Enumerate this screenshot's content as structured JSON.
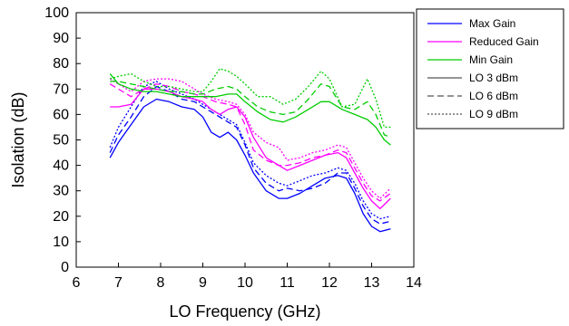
{
  "chart_data": {
    "type": "line",
    "title": "",
    "xlabel": "LO Frequency (GHz)",
    "ylabel": "Isolation (dB)",
    "xlim": [
      6,
      14
    ],
    "ylim": [
      0,
      100
    ],
    "xticks": [
      6,
      7,
      8,
      9,
      10,
      11,
      12,
      13,
      14
    ],
    "yticks": [
      0,
      10,
      20,
      30,
      40,
      50,
      60,
      70,
      80,
      90,
      100
    ],
    "xtick_labels": [
      "6",
      "7",
      "8",
      "9",
      "10",
      "11",
      "12",
      "13",
      "14"
    ],
    "ytick_labels": [
      "0",
      "10",
      "20",
      "30",
      "40",
      "50",
      "60",
      "70",
      "80",
      "90",
      "100"
    ],
    "grid": false,
    "legend_position": "top-right, outside plot",
    "legend": [
      {
        "label": "Max Gain",
        "color": "#0000ff",
        "style": "solid"
      },
      {
        "label": "Reduced Gain",
        "color": "#ff00ff",
        "style": "solid"
      },
      {
        "label": "Min Gain",
        "color": "#00cc00",
        "style": "solid"
      },
      {
        "label": "LO 3 dBm",
        "color": "#555555",
        "style": "solid"
      },
      {
        "label": "LO 6 dBm",
        "color": "#555555",
        "style": "dashed"
      },
      {
        "label": "LO 9 dBm",
        "color": "#555555",
        "style": "dotted"
      }
    ],
    "series": [
      {
        "gain": "Max Gain",
        "lo": "LO 3 dBm",
        "color": "#0000ff",
        "style": "solid",
        "x": [
          6.8,
          7.0,
          7.3,
          7.6,
          7.9,
          8.2,
          8.5,
          8.8,
          9.0,
          9.2,
          9.4,
          9.6,
          9.8,
          10.0,
          10.2,
          10.5,
          10.8,
          11.0,
          11.3,
          11.6,
          11.9,
          12.2,
          12.4,
          12.6,
          12.8,
          13.0,
          13.2,
          13.45
        ],
        "y": [
          43,
          49,
          56,
          63,
          66,
          65,
          63,
          62,
          59,
          53,
          51,
          53,
          50,
          44,
          37,
          30,
          27,
          27,
          29,
          32,
          35,
          36,
          35,
          29,
          21,
          16,
          14,
          15
        ]
      },
      {
        "gain": "Max Gain",
        "lo": "LO 6 dBm",
        "color": "#0000ff",
        "style": "dashed",
        "x": [
          6.8,
          7.0,
          7.3,
          7.6,
          7.9,
          8.2,
          8.5,
          8.8,
          9.0,
          9.3,
          9.6,
          9.8,
          10.0,
          10.2,
          10.5,
          10.8,
          11.0,
          11.3,
          11.6,
          11.9,
          12.2,
          12.4,
          12.6,
          12.8,
          13.0,
          13.2,
          13.45
        ],
        "y": [
          45,
          52,
          59,
          67,
          71,
          69,
          66,
          65,
          63,
          60,
          57,
          55,
          48,
          39,
          33,
          30,
          31,
          30,
          31,
          33,
          37,
          37,
          31,
          24,
          19,
          17,
          18
        ]
      },
      {
        "gain": "Max Gain",
        "lo": "LO 9 dBm",
        "color": "#0000ff",
        "style": "dotted",
        "x": [
          6.8,
          7.0,
          7.3,
          7.6,
          7.9,
          8.2,
          8.5,
          8.8,
          9.0,
          9.3,
          9.6,
          9.8,
          10.0,
          10.2,
          10.5,
          10.8,
          11.0,
          11.3,
          11.6,
          11.9,
          12.2,
          12.4,
          12.6,
          12.8,
          13.0,
          13.2,
          13.45
        ],
        "y": [
          47,
          55,
          63,
          71,
          73,
          70,
          68,
          66,
          64,
          61,
          58,
          56,
          49,
          41,
          36,
          33,
          32,
          34,
          36,
          37,
          39,
          38,
          33,
          26,
          21,
          19,
          20
        ]
      },
      {
        "gain": "Reduced Gain",
        "lo": "LO 3 dBm",
        "color": "#ff00ff",
        "style": "solid",
        "x": [
          6.8,
          7.0,
          7.3,
          7.6,
          7.9,
          8.2,
          8.5,
          8.8,
          9.0,
          9.2,
          9.4,
          9.6,
          9.8,
          10.0,
          10.2,
          10.5,
          10.8,
          11.0,
          11.3,
          11.6,
          11.9,
          12.2,
          12.4,
          12.6,
          12.8,
          13.0,
          13.2,
          13.45
        ],
        "y": [
          63,
          63,
          64,
          70,
          70,
          69,
          67,
          66,
          65,
          62,
          60,
          62,
          63,
          59,
          51,
          43,
          40,
          38,
          40,
          42,
          44,
          45,
          43,
          37,
          31,
          26,
          23,
          27
        ]
      },
      {
        "gain": "Reduced Gain",
        "lo": "LO 6 dBm",
        "color": "#ff00ff",
        "style": "dashed",
        "x": [
          6.8,
          7.0,
          7.3,
          7.6,
          7.9,
          8.2,
          8.5,
          8.8,
          9.0,
          9.3,
          9.6,
          9.8,
          10.0,
          10.2,
          10.5,
          10.8,
          11.0,
          11.3,
          11.6,
          11.9,
          12.2,
          12.4,
          12.6,
          12.8,
          13.0,
          13.2,
          13.45
        ],
        "y": [
          72,
          70,
          67,
          70,
          72,
          71,
          69,
          68,
          67,
          65,
          64,
          63,
          56,
          46,
          42,
          40,
          40,
          41,
          43,
          44,
          46,
          45,
          39,
          33,
          28,
          26,
          29
        ]
      },
      {
        "gain": "Reduced Gain",
        "lo": "LO 9 dBm",
        "color": "#ff00ff",
        "style": "dotted",
        "x": [
          6.8,
          7.0,
          7.3,
          7.6,
          7.9,
          8.2,
          8.5,
          8.8,
          9.0,
          9.3,
          9.6,
          9.8,
          10.0,
          10.2,
          10.5,
          10.8,
          11.0,
          11.3,
          11.6,
          11.9,
          12.2,
          12.4,
          12.6,
          12.8,
          13.0,
          13.2,
          13.45
        ],
        "y": [
          74,
          72,
          69,
          73,
          74,
          74,
          73,
          70,
          68,
          66,
          65,
          64,
          60,
          53,
          49,
          47,
          42,
          43,
          45,
          46,
          48,
          47,
          41,
          35,
          30,
          27,
          31
        ]
      },
      {
        "gain": "Min Gain",
        "lo": "LO 3 dBm",
        "color": "#00cc00",
        "style": "solid",
        "x": [
          6.8,
          7.0,
          7.3,
          7.6,
          7.9,
          8.2,
          8.5,
          8.8,
          9.0,
          9.3,
          9.6,
          9.8,
          10.0,
          10.3,
          10.6,
          10.9,
          11.2,
          11.5,
          11.8,
          12.0,
          12.3,
          12.6,
          12.9,
          13.1,
          13.3,
          13.45
        ],
        "y": [
          76,
          72,
          70,
          69,
          69,
          68,
          67,
          67,
          67,
          67,
          68,
          68,
          65,
          61,
          58,
          57,
          59,
          62,
          65,
          65,
          62,
          60,
          58,
          55,
          50,
          48
        ]
      },
      {
        "gain": "Min Gain",
        "lo": "LO 6 dBm",
        "color": "#00cc00",
        "style": "dashed",
        "x": [
          6.8,
          7.0,
          7.3,
          7.6,
          7.9,
          8.2,
          8.5,
          8.8,
          9.0,
          9.3,
          9.6,
          9.8,
          10.0,
          10.3,
          10.6,
          10.9,
          11.2,
          11.5,
          11.8,
          12.0,
          12.3,
          12.6,
          12.9,
          13.1,
          13.3,
          13.45
        ],
        "y": [
          73,
          73,
          72,
          71,
          70,
          69,
          69,
          68,
          68,
          70,
          71,
          70,
          67,
          63,
          61,
          60,
          61,
          66,
          72,
          71,
          63,
          62,
          65,
          60,
          52,
          51
        ]
      },
      {
        "gain": "Min Gain",
        "lo": "LO 9 dBm",
        "color": "#00cc00",
        "style": "dotted",
        "x": [
          6.8,
          7.0,
          7.3,
          7.6,
          7.9,
          8.2,
          8.5,
          8.8,
          9.0,
          9.2,
          9.4,
          9.6,
          9.8,
          10.0,
          10.3,
          10.6,
          10.9,
          11.2,
          11.5,
          11.8,
          12.0,
          12.3,
          12.6,
          12.9,
          13.1,
          13.3,
          13.45
        ],
        "y": [
          74,
          75,
          76,
          73,
          71,
          71,
          70,
          69,
          69,
          73,
          78,
          77,
          75,
          72,
          67,
          67,
          64,
          66,
          71,
          77,
          74,
          63,
          64,
          74,
          66,
          55,
          55
        ]
      }
    ]
  }
}
